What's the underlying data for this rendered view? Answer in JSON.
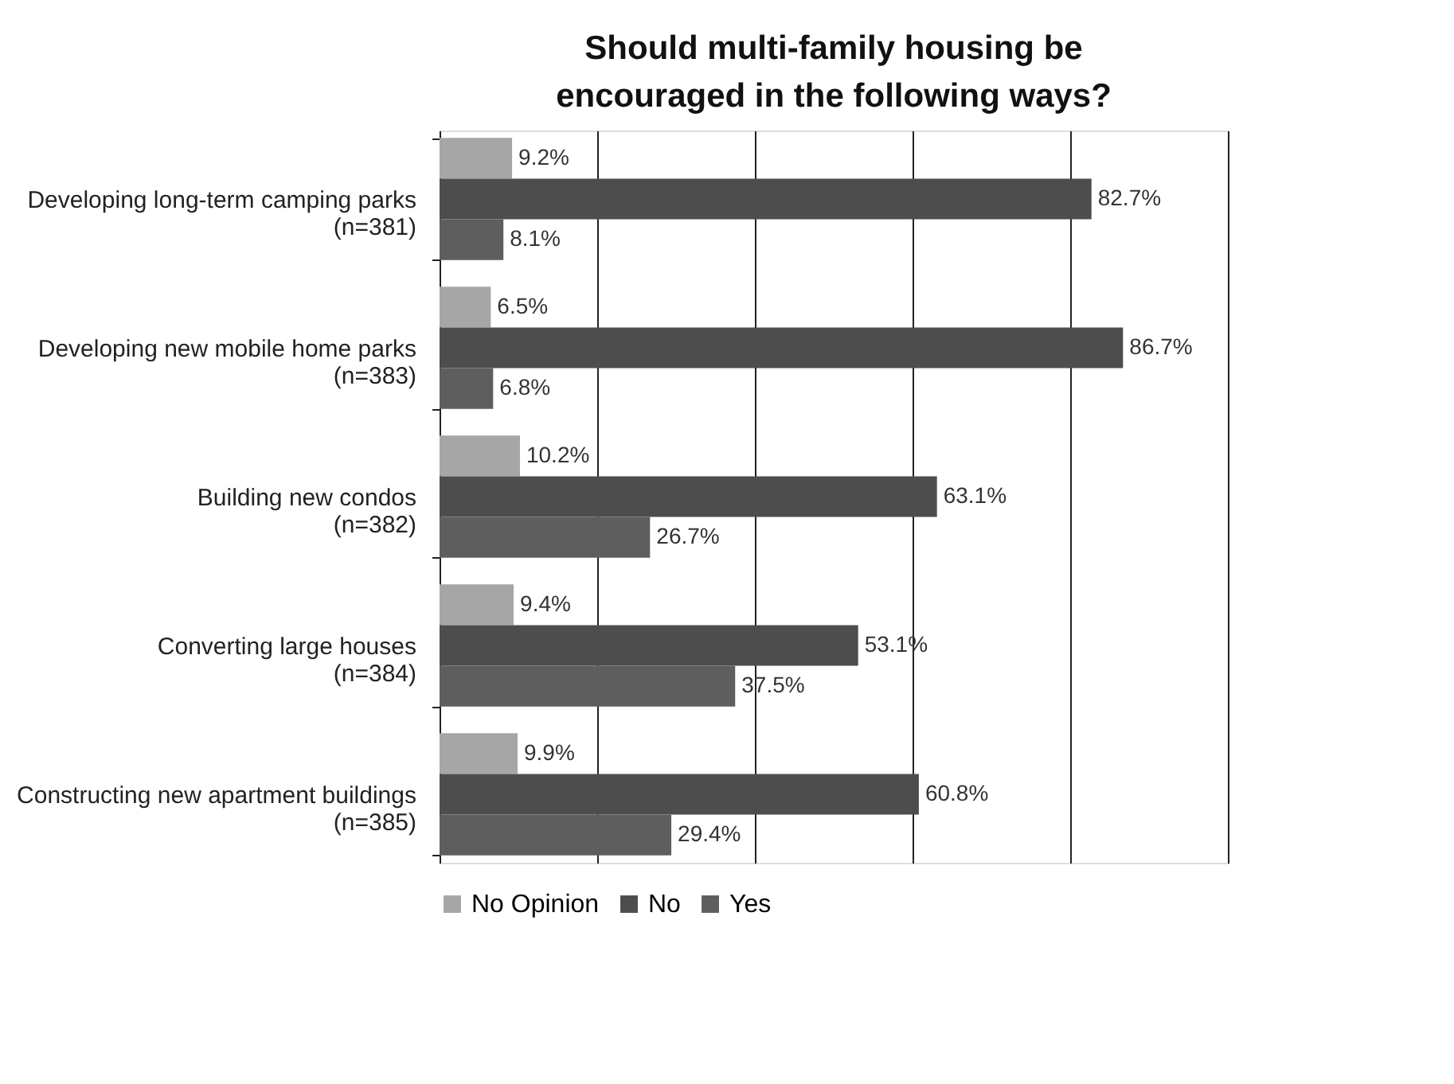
{
  "chart_data": {
    "type": "bar",
    "orientation": "horizontal",
    "title": "Should multi-family housing be encouraged in the following ways?",
    "categories": [
      "Developing long-term camping parks\n(n=381)",
      "Developing new mobile home parks\n(n=383)",
      "Building new condos\n(n=382)",
      "Converting large houses\n(n=384)",
      "Constructing new apartment buildings\n(n=385)"
    ],
    "series": [
      {
        "name": "No Opinion",
        "color": "#a6a6a6",
        "values": [
          9.2,
          6.5,
          10.2,
          9.4,
          9.9
        ],
        "value_labels": [
          "9.2%",
          "6.5%",
          "10.2%",
          "9.4%",
          "9.9%"
        ]
      },
      {
        "name": "No",
        "color": "#4d4d4d",
        "values": [
          82.7,
          86.7,
          63.1,
          53.1,
          60.8
        ],
        "value_labels": [
          "82.7%",
          "86.7%",
          "63.1%",
          "53.1%",
          "60.8%"
        ]
      },
      {
        "name": "Yes",
        "color": "#5e5e5e",
        "values": [
          8.1,
          6.8,
          26.7,
          37.5,
          29.4
        ],
        "value_labels": [
          "8.1%",
          "6.8%",
          "26.7%",
          "37.5%",
          "29.4%"
        ]
      }
    ],
    "xlim": [
      0,
      100
    ],
    "xticks": [
      {
        "value": 0,
        "label": null
      },
      {
        "value": 20,
        "label": null
      },
      {
        "value": 40,
        "label": null
      },
      {
        "value": 60,
        "label": null
      },
      {
        "value": 80,
        "label": null
      },
      {
        "value": 100,
        "label": null
      }
    ],
    "tick_labels": "y",
    "grid": "x",
    "legend": "bottom"
  }
}
